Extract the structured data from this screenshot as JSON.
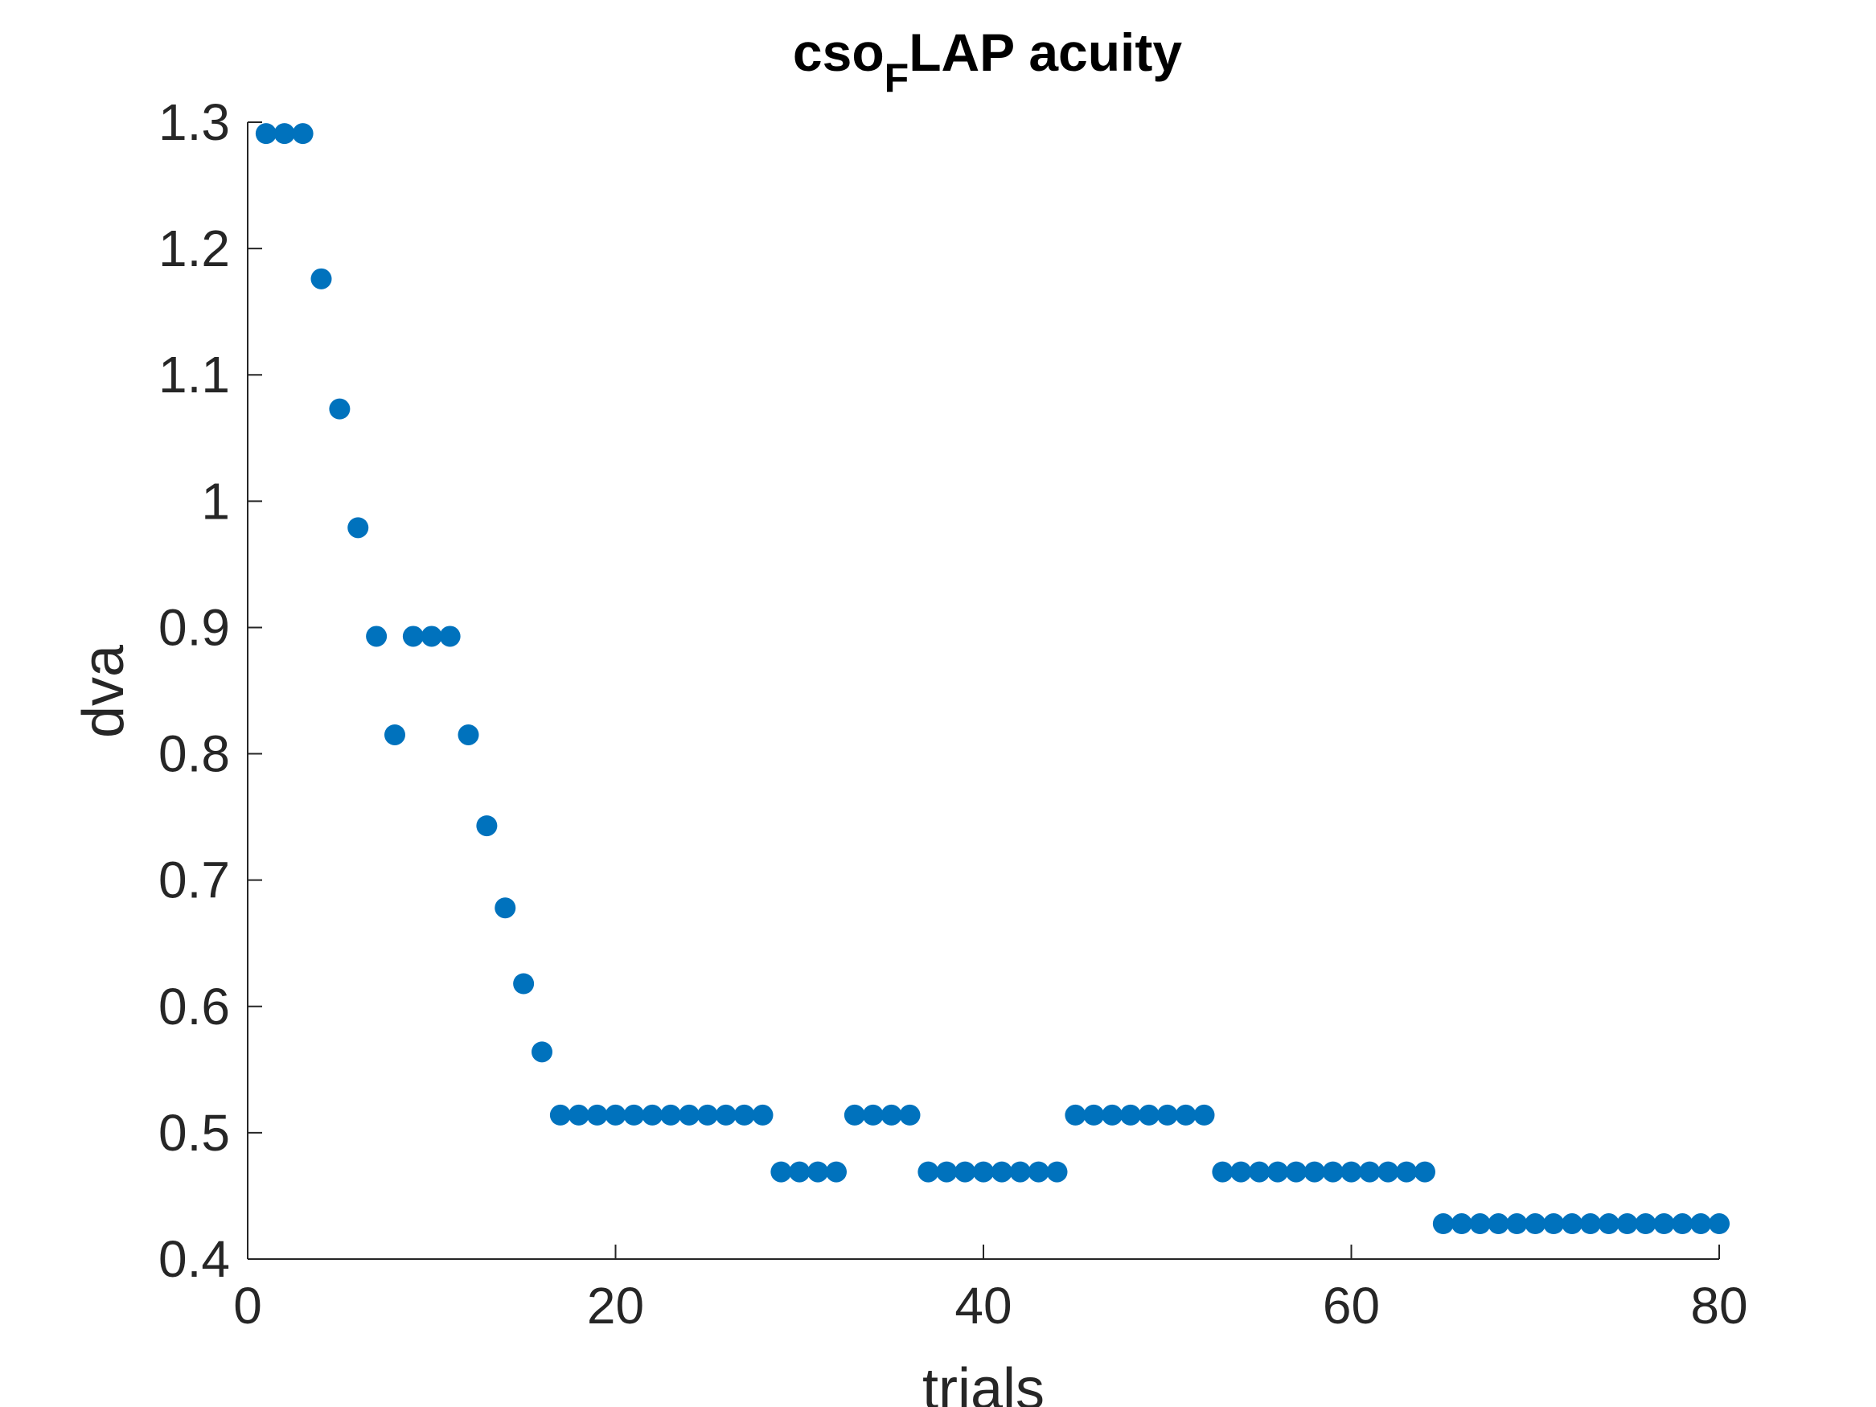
{
  "chart_data": {
    "type": "scatter",
    "title": {
      "main": "cso",
      "subscript": "F",
      "rest": "LAP acuity"
    },
    "xlabel": "trials",
    "ylabel": "dva",
    "xlim": [
      0,
      80
    ],
    "ylim": [
      0.4,
      1.3
    ],
    "xticks": [
      0,
      20,
      40,
      60,
      80
    ],
    "xtick_labels": [
      "0",
      "20",
      "40",
      "60",
      "80"
    ],
    "yticks": [
      0.4,
      0.5,
      0.6,
      0.7,
      0.8,
      0.9,
      1.0,
      1.1,
      1.2,
      1.3
    ],
    "ytick_labels": [
      "0.4",
      "0.5",
      "0.6",
      "0.7",
      "0.8",
      "0.9",
      "1",
      "1.1",
      "1.2",
      "1.3"
    ],
    "grid": false,
    "marker_color": "#0072BD",
    "axis_color": "#262626",
    "series": [
      {
        "x": [
          1,
          2,
          3,
          4,
          5,
          6,
          7,
          8,
          9,
          10,
          11,
          12,
          13,
          14,
          15,
          16,
          17,
          18,
          19,
          20,
          21,
          22,
          23,
          24,
          25,
          26,
          27,
          28,
          29,
          30,
          31,
          32,
          33,
          34,
          35,
          36,
          37,
          38,
          39,
          40,
          41,
          42,
          43,
          44,
          45,
          46,
          47,
          48,
          49,
          50,
          51,
          52,
          53,
          54,
          55,
          56,
          57,
          58,
          59,
          60,
          61,
          62,
          63,
          64,
          65,
          66,
          67,
          68,
          69,
          70,
          71,
          72,
          73,
          74,
          75,
          76,
          77,
          78,
          79,
          80
        ],
        "y": [
          1.291,
          1.291,
          1.291,
          1.176,
          1.073,
          0.979,
          0.893,
          0.815,
          0.893,
          0.893,
          0.893,
          0.815,
          0.743,
          0.678,
          0.618,
          0.564,
          0.514,
          0.514,
          0.514,
          0.514,
          0.514,
          0.514,
          0.514,
          0.514,
          0.514,
          0.514,
          0.514,
          0.514,
          0.469,
          0.469,
          0.469,
          0.469,
          0.514,
          0.514,
          0.514,
          0.514,
          0.469,
          0.469,
          0.469,
          0.469,
          0.469,
          0.469,
          0.469,
          0.469,
          0.514,
          0.514,
          0.514,
          0.514,
          0.514,
          0.514,
          0.514,
          0.514,
          0.469,
          0.469,
          0.469,
          0.469,
          0.469,
          0.469,
          0.469,
          0.469,
          0.469,
          0.469,
          0.469,
          0.469,
          0.428,
          0.428,
          0.428,
          0.428,
          0.428,
          0.428,
          0.428,
          0.428,
          0.428,
          0.428,
          0.428,
          0.428,
          0.428,
          0.428,
          0.428,
          0.428
        ]
      }
    ]
  }
}
